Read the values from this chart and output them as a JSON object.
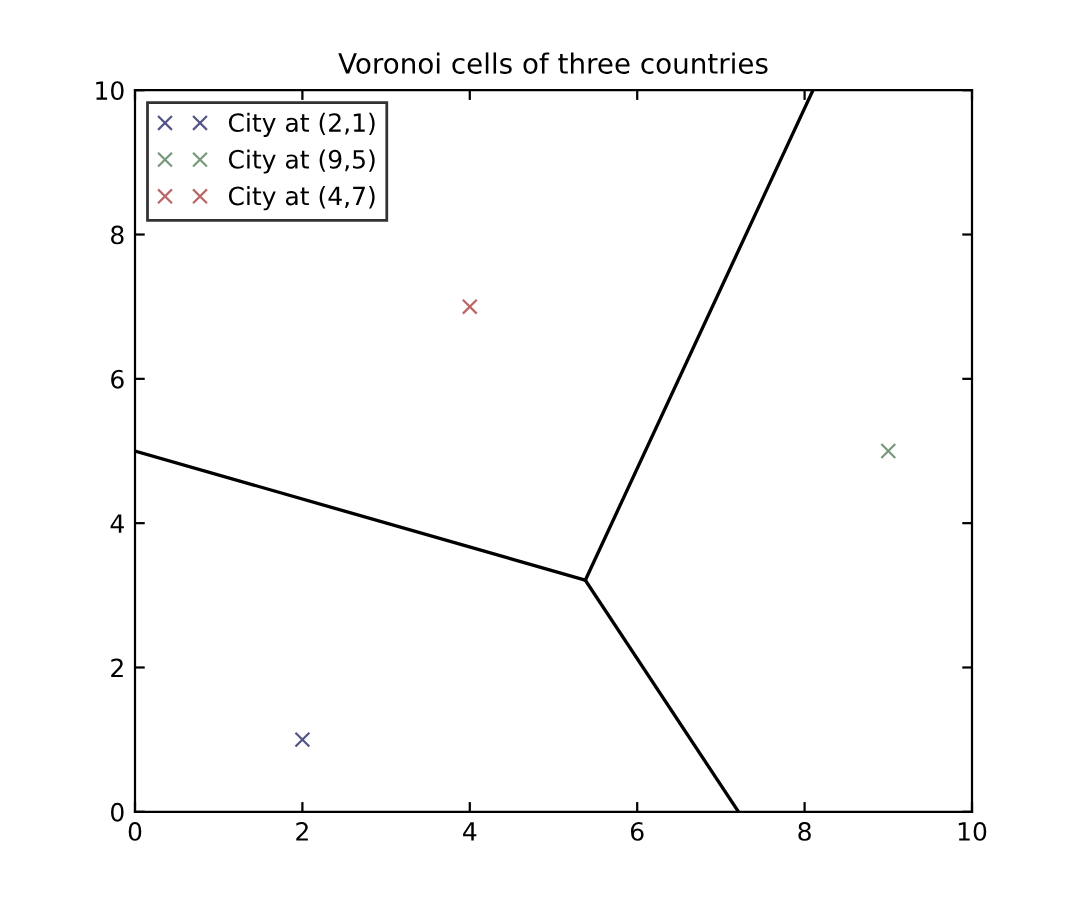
{
  "chart_data": {
    "type": "scatter",
    "title": "Voronoi cells of three countries",
    "xlim": [
      0,
      10
    ],
    "ylim": [
      0,
      10
    ],
    "xticks": [
      0,
      2,
      4,
      6,
      8,
      10
    ],
    "yticks": [
      0,
      2,
      4,
      6,
      8,
      10
    ],
    "grid": false,
    "legend": "top left",
    "series": [
      {
        "name": "City at (2,1)",
        "color": "#555588",
        "marker": "cross",
        "x": [
          2
        ],
        "values": [
          1
        ]
      },
      {
        "name": "City at (9,5)",
        "color": "#77997a",
        "marker": "cross",
        "x": [
          9
        ],
        "values": [
          5
        ]
      },
      {
        "name": "City at (4,7)",
        "color": "#bb6666",
        "marker": "cross",
        "x": [
          4
        ],
        "values": [
          7
        ]
      },
      {
        "type": "line",
        "color": "#000000",
        "x": [
          0,
          5.38
        ],
        "values": [
          5,
          3.21
        ]
      },
      {
        "type": "line",
        "color": "#000000",
        "x": [
          5.38,
          8.1
        ],
        "values": [
          3.21,
          10
        ]
      },
      {
        "type": "line",
        "color": "#000000",
        "x": [
          5.38,
          7.21
        ],
        "values": [
          3.21,
          0
        ]
      }
    ]
  }
}
